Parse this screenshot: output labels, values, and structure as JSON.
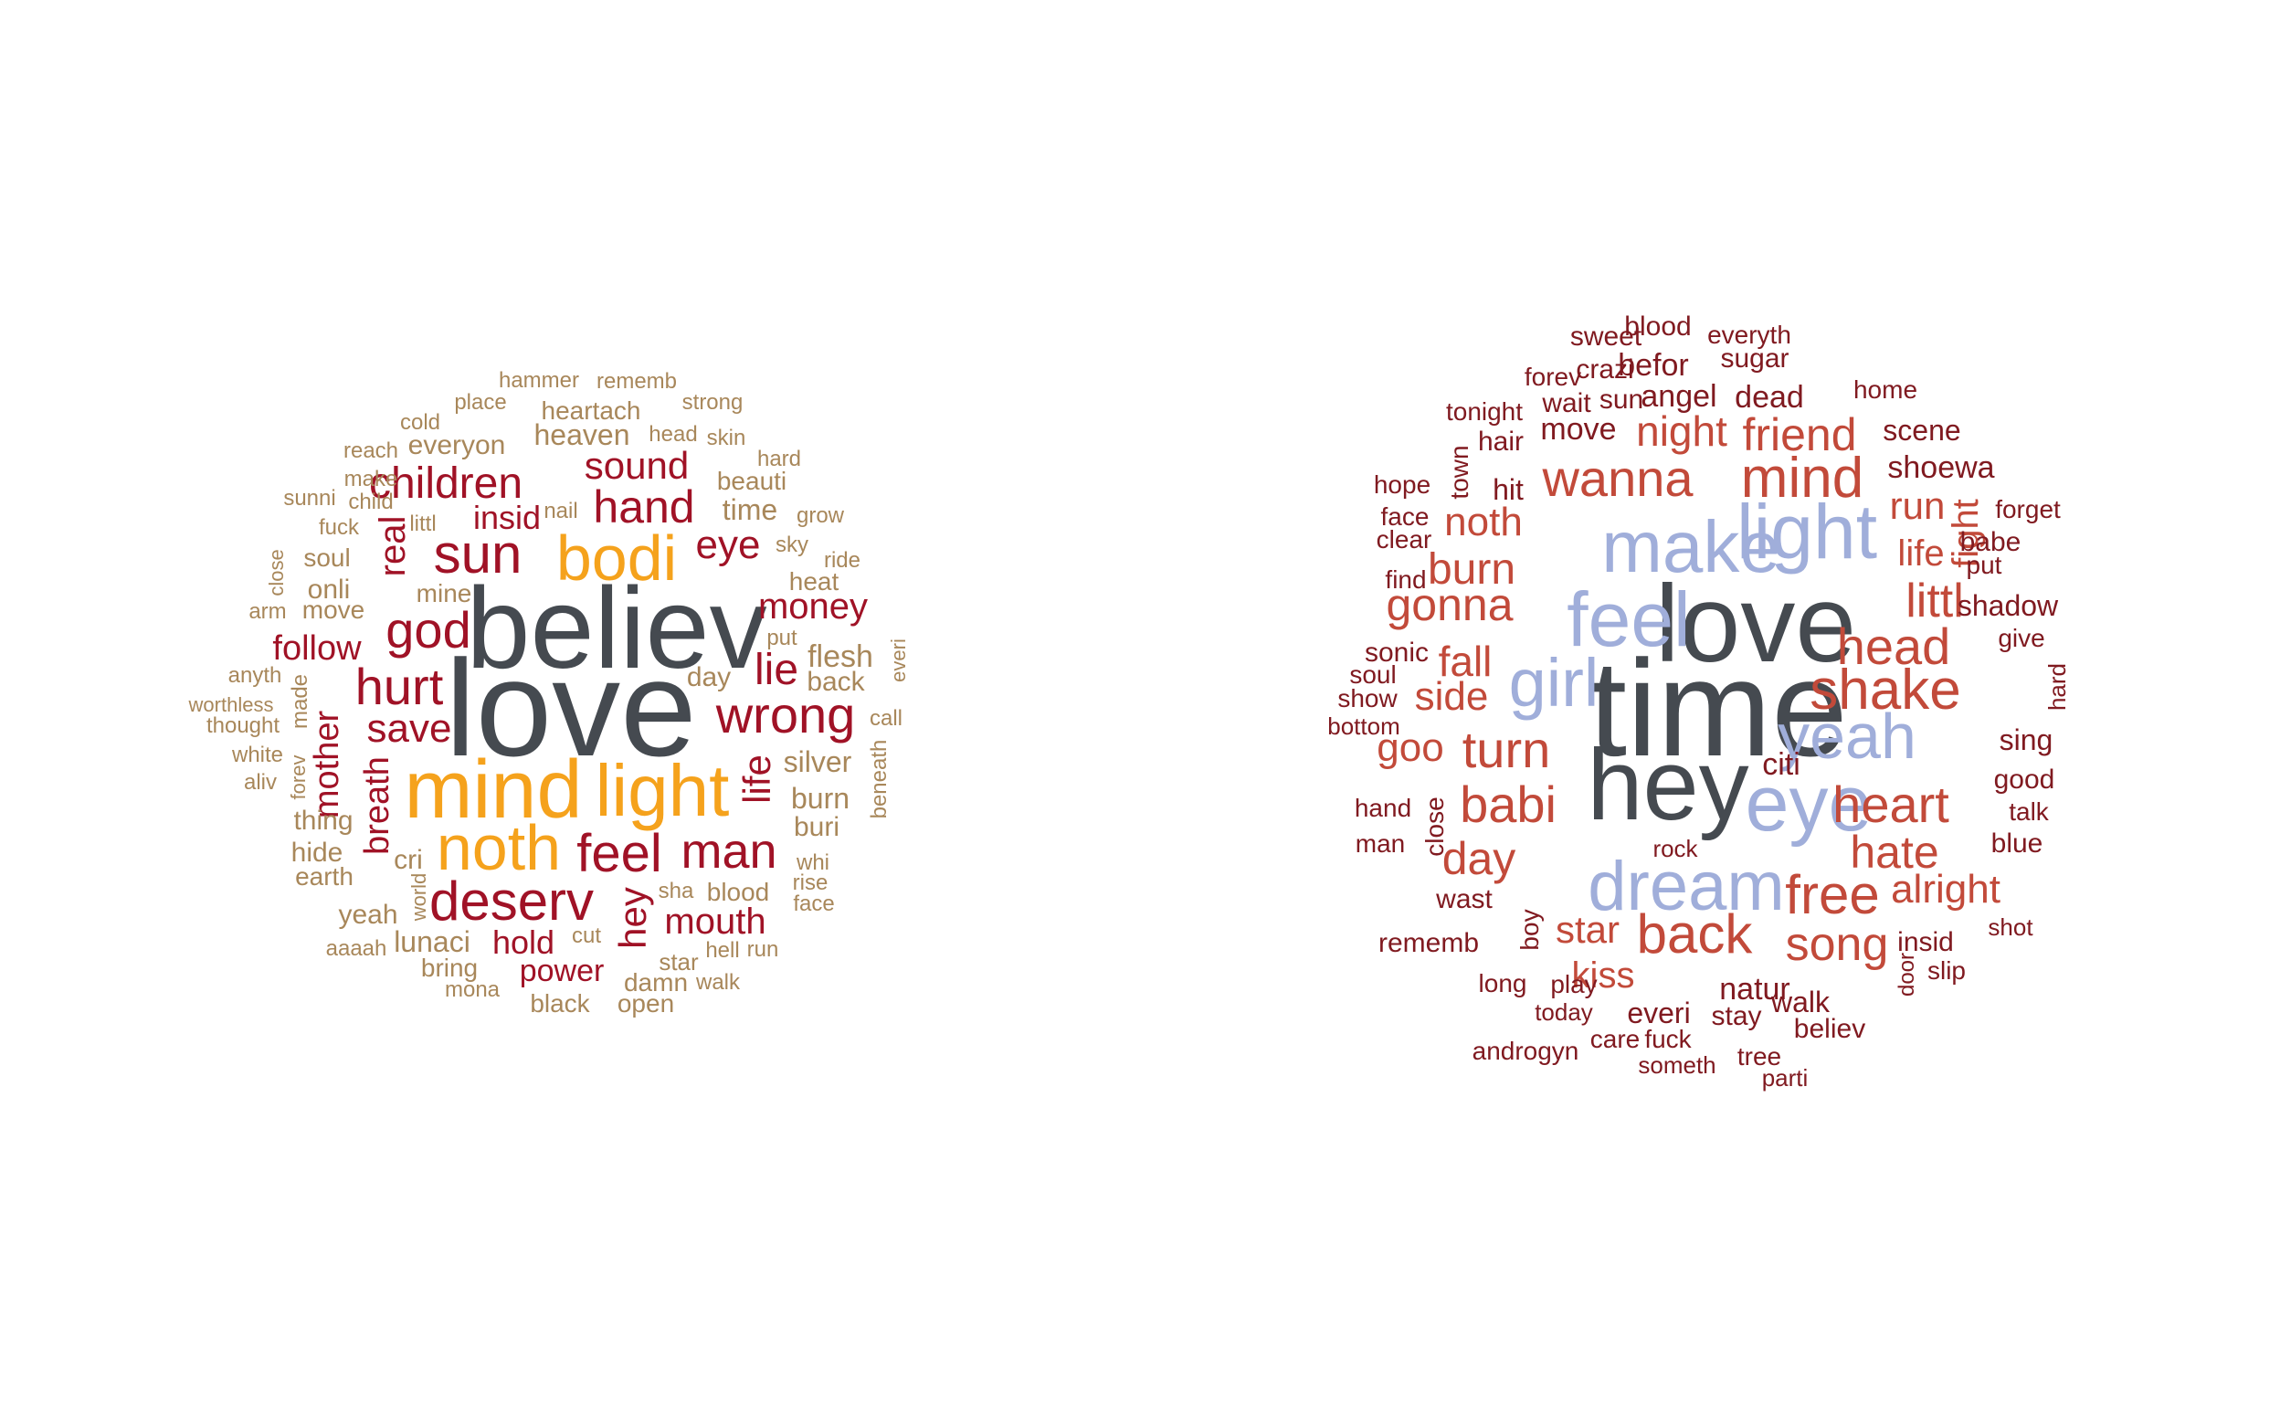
{
  "colors": {
    "dark": "#454A50",
    "orange": "#F5A21C",
    "crimson": "#A01226",
    "tan": "#A8875A",
    "blue": "#A0AEDA",
    "red": "#C24A3A",
    "maroon": "#801A20"
  },
  "clouds": [
    {
      "name": "left-word-cloud",
      "words": [
        {
          "text": "love",
          "color": "dark"
        },
        {
          "text": "believ",
          "color": "dark"
        },
        {
          "text": "mind",
          "color": "orange"
        },
        {
          "text": "light",
          "color": "orange"
        },
        {
          "text": "bodi",
          "color": "orange"
        },
        {
          "text": "noth",
          "color": "orange"
        },
        {
          "text": "sun",
          "color": "crimson"
        },
        {
          "text": "hurt",
          "color": "crimson"
        },
        {
          "text": "god",
          "color": "crimson"
        },
        {
          "text": "hand",
          "color": "crimson"
        },
        {
          "text": "wrong",
          "color": "crimson"
        },
        {
          "text": "feel",
          "color": "crimson"
        },
        {
          "text": "man",
          "color": "crimson"
        },
        {
          "text": "deserv",
          "color": "crimson"
        },
        {
          "text": "children",
          "color": "crimson"
        },
        {
          "text": "sound",
          "color": "crimson"
        },
        {
          "text": "eye",
          "color": "crimson"
        },
        {
          "text": "money",
          "color": "crimson"
        },
        {
          "text": "save",
          "color": "crimson"
        },
        {
          "text": "lie",
          "color": "crimson"
        },
        {
          "text": "life",
          "color": "crimson"
        },
        {
          "text": "real",
          "color": "crimson"
        },
        {
          "text": "insid",
          "color": "crimson"
        },
        {
          "text": "follow",
          "color": "crimson"
        },
        {
          "text": "mother",
          "color": "crimson"
        },
        {
          "text": "breath",
          "color": "crimson"
        },
        {
          "text": "hey",
          "color": "crimson"
        },
        {
          "text": "mouth",
          "color": "crimson"
        },
        {
          "text": "hold",
          "color": "crimson"
        },
        {
          "text": "power",
          "color": "crimson"
        },
        {
          "text": "hammer",
          "color": "tan"
        },
        {
          "text": "rememb",
          "color": "tan"
        },
        {
          "text": "place",
          "color": "tan"
        },
        {
          "text": "strong",
          "color": "tan"
        },
        {
          "text": "cold",
          "color": "tan"
        },
        {
          "text": "heartach",
          "color": "tan"
        },
        {
          "text": "heaven",
          "color": "tan"
        },
        {
          "text": "head",
          "color": "tan"
        },
        {
          "text": "skin",
          "color": "tan"
        },
        {
          "text": "reach",
          "color": "tan"
        },
        {
          "text": "everyon",
          "color": "tan"
        },
        {
          "text": "hard",
          "color": "tan"
        },
        {
          "text": "make",
          "color": "tan"
        },
        {
          "text": "beauti",
          "color": "tan"
        },
        {
          "text": "sunni",
          "color": "tan"
        },
        {
          "text": "child",
          "color": "tan"
        },
        {
          "text": "nail",
          "color": "tan"
        },
        {
          "text": "time",
          "color": "tan"
        },
        {
          "text": "grow",
          "color": "tan"
        },
        {
          "text": "fuck",
          "color": "tan"
        },
        {
          "text": "littl",
          "color": "tan"
        },
        {
          "text": "sky",
          "color": "tan"
        },
        {
          "text": "soul",
          "color": "tan"
        },
        {
          "text": "ride",
          "color": "tan"
        },
        {
          "text": "close",
          "color": "tan"
        },
        {
          "text": "onli",
          "color": "tan"
        },
        {
          "text": "mine",
          "color": "tan"
        },
        {
          "text": "heat",
          "color": "tan"
        },
        {
          "text": "arm",
          "color": "tan"
        },
        {
          "text": "move",
          "color": "tan"
        },
        {
          "text": "put",
          "color": "tan"
        },
        {
          "text": "everi",
          "color": "tan"
        },
        {
          "text": "flesh",
          "color": "tan"
        },
        {
          "text": "anyth",
          "color": "tan"
        },
        {
          "text": "day",
          "color": "tan"
        },
        {
          "text": "back",
          "color": "tan"
        },
        {
          "text": "made",
          "color": "tan"
        },
        {
          "text": "worthless",
          "color": "tan"
        },
        {
          "text": "thought",
          "color": "tan"
        },
        {
          "text": "call",
          "color": "tan"
        },
        {
          "text": "white",
          "color": "tan"
        },
        {
          "text": "forev",
          "color": "tan"
        },
        {
          "text": "beneath",
          "color": "tan"
        },
        {
          "text": "silver",
          "color": "tan"
        },
        {
          "text": "aliv",
          "color": "tan"
        },
        {
          "text": "burn",
          "color": "tan"
        },
        {
          "text": "thing",
          "color": "tan"
        },
        {
          "text": "buri",
          "color": "tan"
        },
        {
          "text": "hide",
          "color": "tan"
        },
        {
          "text": "cri",
          "color": "tan"
        },
        {
          "text": "whi",
          "color": "tan"
        },
        {
          "text": "earth",
          "color": "tan"
        },
        {
          "text": "rise",
          "color": "tan"
        },
        {
          "text": "blood",
          "color": "tan"
        },
        {
          "text": "sha",
          "color": "tan"
        },
        {
          "text": "face",
          "color": "tan"
        },
        {
          "text": "world",
          "color": "tan"
        },
        {
          "text": "yeah",
          "color": "tan"
        },
        {
          "text": "cut",
          "color": "tan"
        },
        {
          "text": "lunaci",
          "color": "tan"
        },
        {
          "text": "aaaah",
          "color": "tan"
        },
        {
          "text": "hell",
          "color": "tan"
        },
        {
          "text": "run",
          "color": "tan"
        },
        {
          "text": "bring",
          "color": "tan"
        },
        {
          "text": "star",
          "color": "tan"
        },
        {
          "text": "damn",
          "color": "tan"
        },
        {
          "text": "walk",
          "color": "tan"
        },
        {
          "text": "mona",
          "color": "tan"
        },
        {
          "text": "black",
          "color": "tan"
        },
        {
          "text": "open",
          "color": "tan"
        }
      ]
    },
    {
      "name": "right-word-cloud",
      "words": [
        {
          "text": "time",
          "color": "dark"
        },
        {
          "text": "love",
          "color": "dark"
        },
        {
          "text": "hey",
          "color": "dark"
        },
        {
          "text": "make",
          "color": "blue"
        },
        {
          "text": "light",
          "color": "blue"
        },
        {
          "text": "feel",
          "color": "blue"
        },
        {
          "text": "girl",
          "color": "blue"
        },
        {
          "text": "eye",
          "color": "blue"
        },
        {
          "text": "yeah",
          "color": "blue"
        },
        {
          "text": "dream",
          "color": "blue"
        },
        {
          "text": "mind",
          "color": "red"
        },
        {
          "text": "wanna",
          "color": "red"
        },
        {
          "text": "shake",
          "color": "red"
        },
        {
          "text": "head",
          "color": "red"
        },
        {
          "text": "heart",
          "color": "red"
        },
        {
          "text": "back",
          "color": "red"
        },
        {
          "text": "free",
          "color": "red"
        },
        {
          "text": "song",
          "color": "red"
        },
        {
          "text": "babi",
          "color": "red"
        },
        {
          "text": "turn",
          "color": "red"
        },
        {
          "text": "gonna",
          "color": "red"
        },
        {
          "text": "day",
          "color": "red"
        },
        {
          "text": "friend",
          "color": "red"
        },
        {
          "text": "night",
          "color": "red"
        },
        {
          "text": "burn",
          "color": "red"
        },
        {
          "text": "noth",
          "color": "red"
        },
        {
          "text": "fall",
          "color": "red"
        },
        {
          "text": "side",
          "color": "red"
        },
        {
          "text": "goo",
          "color": "red"
        },
        {
          "text": "littl",
          "color": "red"
        },
        {
          "text": "hate",
          "color": "red"
        },
        {
          "text": "alright",
          "color": "red"
        },
        {
          "text": "star",
          "color": "red"
        },
        {
          "text": "kiss",
          "color": "red"
        },
        {
          "text": "run",
          "color": "red"
        },
        {
          "text": "life",
          "color": "red"
        },
        {
          "text": "fight",
          "color": "red"
        },
        {
          "text": "sweet",
          "color": "maroon"
        },
        {
          "text": "blood",
          "color": "maroon"
        },
        {
          "text": "everyth",
          "color": "maroon"
        },
        {
          "text": "forev",
          "color": "maroon"
        },
        {
          "text": "crazi",
          "color": "maroon"
        },
        {
          "text": "befor",
          "color": "maroon"
        },
        {
          "text": "sugar",
          "color": "maroon"
        },
        {
          "text": "tonight",
          "color": "maroon"
        },
        {
          "text": "wait",
          "color": "maroon"
        },
        {
          "text": "sun",
          "color": "maroon"
        },
        {
          "text": "angel",
          "color": "maroon"
        },
        {
          "text": "dead",
          "color": "maroon"
        },
        {
          "text": "home",
          "color": "maroon"
        },
        {
          "text": "town",
          "color": "maroon"
        },
        {
          "text": "hair",
          "color": "maroon"
        },
        {
          "text": "move",
          "color": "maroon"
        },
        {
          "text": "scene",
          "color": "maroon"
        },
        {
          "text": "hope",
          "color": "maroon"
        },
        {
          "text": "hit",
          "color": "maroon"
        },
        {
          "text": "shoewa",
          "color": "maroon"
        },
        {
          "text": "face",
          "color": "maroon"
        },
        {
          "text": "forget",
          "color": "maroon"
        },
        {
          "text": "clear",
          "color": "maroon"
        },
        {
          "text": "babe",
          "color": "maroon"
        },
        {
          "text": "find",
          "color": "maroon"
        },
        {
          "text": "put",
          "color": "maroon"
        },
        {
          "text": "shadow",
          "color": "maroon"
        },
        {
          "text": "give",
          "color": "maroon"
        },
        {
          "text": "sonic",
          "color": "maroon"
        },
        {
          "text": "soul",
          "color": "maroon"
        },
        {
          "text": "hard",
          "color": "maroon"
        },
        {
          "text": "show",
          "color": "maroon"
        },
        {
          "text": "bottom",
          "color": "maroon"
        },
        {
          "text": "sing",
          "color": "maroon"
        },
        {
          "text": "citi",
          "color": "maroon"
        },
        {
          "text": "good",
          "color": "maroon"
        },
        {
          "text": "hand",
          "color": "maroon"
        },
        {
          "text": "close",
          "color": "maroon"
        },
        {
          "text": "talk",
          "color": "maroon"
        },
        {
          "text": "man",
          "color": "maroon"
        },
        {
          "text": "blue",
          "color": "maroon"
        },
        {
          "text": "rock",
          "color": "maroon"
        },
        {
          "text": "wast",
          "color": "maroon"
        },
        {
          "text": "boy",
          "color": "maroon"
        },
        {
          "text": "shot",
          "color": "maroon"
        },
        {
          "text": "rememb",
          "color": "maroon"
        },
        {
          "text": "insid",
          "color": "maroon"
        },
        {
          "text": "slip",
          "color": "maroon"
        },
        {
          "text": "door",
          "color": "maroon"
        },
        {
          "text": "long",
          "color": "maroon"
        },
        {
          "text": "play",
          "color": "maroon"
        },
        {
          "text": "natur",
          "color": "maroon"
        },
        {
          "text": "walk",
          "color": "maroon"
        },
        {
          "text": "today",
          "color": "maroon"
        },
        {
          "text": "everi",
          "color": "maroon"
        },
        {
          "text": "stay",
          "color": "maroon"
        },
        {
          "text": "believ",
          "color": "maroon"
        },
        {
          "text": "care",
          "color": "maroon"
        },
        {
          "text": "fuck",
          "color": "maroon"
        },
        {
          "text": "androgyn",
          "color": "maroon"
        },
        {
          "text": "tree",
          "color": "maroon"
        },
        {
          "text": "someth",
          "color": "maroon"
        },
        {
          "text": "parti",
          "color": "maroon"
        }
      ]
    }
  ]
}
